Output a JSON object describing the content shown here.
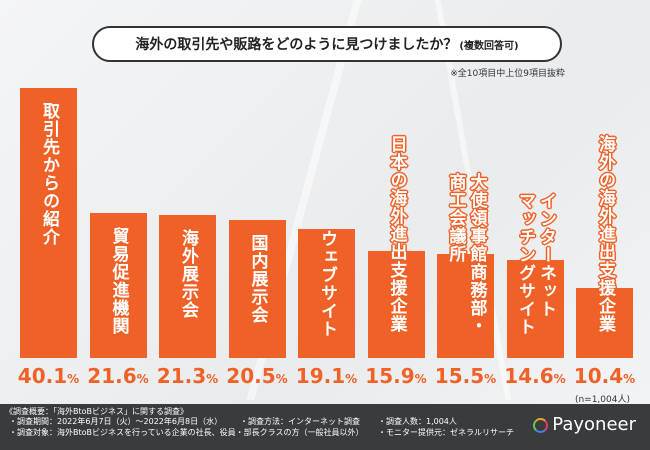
{
  "title": {
    "main": "海外の取引先や販路をどのように見つけましたか？",
    "sub": "(複数回答可)"
  },
  "note": "※全10項目中上位9項目抜粋",
  "chart_data": {
    "type": "bar",
    "title": "海外の取引先や販路をどのように見つけましたか？(複数回答可)",
    "categories": [
      "取引先からの紹介",
      "貿易促進機関",
      "海外展示会",
      "国内展示会",
      "ウェブサイト",
      "日本の海外進出支援企業",
      "大使領事館商務部・\n商工会議所",
      "インターネット\nマッチングサイト",
      "海外の海外進出支援企業"
    ],
    "values": [
      40.1,
      21.6,
      21.3,
      20.5,
      19.1,
      15.9,
      15.5,
      14.6,
      10.4
    ],
    "value_labels": [
      "40.1",
      "21.6",
      "21.3",
      "20.5",
      "19.1",
      "15.9",
      "15.5",
      "14.6",
      "10.4"
    ],
    "unit": "%",
    "ylim": [
      0,
      42
    ],
    "grid": false,
    "color": "#ef6126"
  },
  "sample": "(n=1,004人)",
  "footer": {
    "heading": "《調査概要：「海外BtoBビジネス」に関する調査》",
    "period": "・調査期間：2022年6月7日（火）～2022年6月8日（水）",
    "method": "・調査方法：インターネット調査",
    "count": "・調査人数：1,004人",
    "target": "・調査対象：海外BtoBビジネスを行っている企業の社長、役員・部長クラスの方（一般社員以外）",
    "provider": "・モニター提供元：ゼネラルリサーチ",
    "brand": "Payoneer"
  }
}
